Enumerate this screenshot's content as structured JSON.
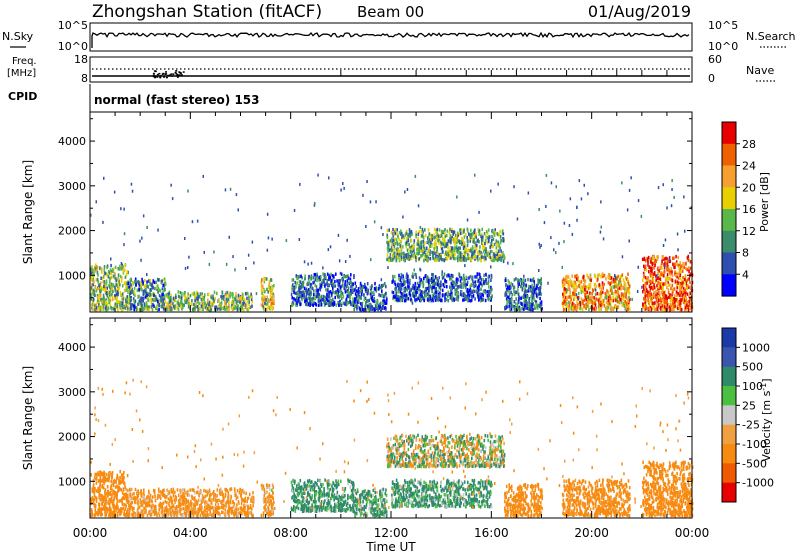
{
  "header": {
    "station": "Zhongshan Station (fitACF)",
    "beam": "Beam 00",
    "date": "01/Aug/2019"
  },
  "noise_panel": {
    "left_label": "N.Sky",
    "left_ticks": [
      "10^5",
      "10^0"
    ],
    "right_label": "N.Search",
    "right_ticks": [
      "10^5",
      "10^0"
    ]
  },
  "freq_panel": {
    "left_label_1": "Freq.",
    "left_label_2": "[MHz]",
    "left_ticks": [
      "18",
      "8"
    ],
    "right_label": "Nave",
    "right_ticks": [
      "60",
      "0"
    ]
  },
  "cpid": {
    "label": "CPID",
    "text": "normal (fast stereo) 153"
  },
  "x_axis": {
    "label": "Time UT",
    "ticks": [
      "00:00",
      "04:00",
      "08:00",
      "12:00",
      "16:00",
      "20:00",
      "00:00"
    ]
  },
  "colors": {
    "power": [
      "#0000ff",
      "#2f4fb0",
      "#3a8c6a",
      "#5ab84a",
      "#e8d000",
      "#f7a030",
      "#ef6000",
      "#e80000"
    ],
    "velocity": [
      "#e80000",
      "#ef5a00",
      "#f78a10",
      "#f0a040",
      "#c8c8c8",
      "#4cbf40",
      "#2f8a6a",
      "#3a55b0",
      "#1a3aa8"
    ]
  },
  "chart_data": [
    {
      "type": "heatmap",
      "ylabel": "Slant Range [km]",
      "xlabel": "",
      "y_ticks": [
        "1000",
        "2000",
        "3000",
        "4000"
      ],
      "y_tick_values": [
        1000,
        2000,
        3000,
        4000
      ],
      "ylim": [
        180,
        4650
      ],
      "xlim_hours": [
        0,
        24
      ],
      "colorbar": {
        "label": "Power [dB]",
        "ticks": [
          "4",
          "8",
          "12",
          "16",
          "20",
          "24",
          "28"
        ],
        "tick_values": [
          4,
          8,
          12,
          16,
          20,
          24,
          28
        ],
        "range": [
          0,
          32
        ]
      },
      "clusters": [
        {
          "t0": 0.0,
          "t1": 1.5,
          "r0": 200,
          "r1": 1200,
          "value": 14
        },
        {
          "t0": 1.5,
          "t1": 3.0,
          "r0": 200,
          "r1": 900,
          "value": 10
        },
        {
          "t0": 3.0,
          "t1": 6.5,
          "r0": 200,
          "r1": 600,
          "value": 14
        },
        {
          "t0": 6.8,
          "t1": 7.3,
          "r0": 200,
          "r1": 900,
          "value": 18
        },
        {
          "t0": 8.0,
          "t1": 10.5,
          "r0": 300,
          "r1": 1000,
          "value": 8
        },
        {
          "t0": 10.5,
          "t1": 11.8,
          "r0": 200,
          "r1": 800,
          "value": 6
        },
        {
          "t0": 11.8,
          "t1": 16.5,
          "r0": 1300,
          "r1": 2000,
          "value": 12
        },
        {
          "t0": 12.0,
          "t1": 16.0,
          "r0": 400,
          "r1": 1000,
          "value": 6
        },
        {
          "t0": 16.5,
          "t1": 18.0,
          "r0": 200,
          "r1": 900,
          "value": 8
        },
        {
          "t0": 18.8,
          "t1": 21.5,
          "r0": 200,
          "r1": 1000,
          "value": 22
        },
        {
          "t0": 22.0,
          "t1": 24.0,
          "r0": 200,
          "r1": 1400,
          "value": 26
        }
      ]
    },
    {
      "type": "heatmap",
      "ylabel": "Slant Range [km]",
      "xlabel": "Time UT",
      "y_ticks": [
        "1000",
        "2000",
        "3000",
        "4000"
      ],
      "y_tick_values": [
        1000,
        2000,
        3000,
        4000
      ],
      "ylim": [
        180,
        4650
      ],
      "xlim_hours": [
        0,
        24
      ],
      "colorbar": {
        "label": "Velocity [m s^-1]",
        "ticks": [
          "-1000",
          "-500",
          "-100",
          "-25",
          "25",
          "100",
          "500",
          "1000"
        ],
        "tick_values": [
          -1000,
          -500,
          -100,
          -25,
          25,
          100,
          500,
          1000
        ]
      },
      "clusters": [
        {
          "t0": 0.0,
          "t1": 1.5,
          "r0": 200,
          "r1": 1200,
          "value": -300
        },
        {
          "t0": 1.5,
          "t1": 6.5,
          "r0": 200,
          "r1": 800,
          "value": -200
        },
        {
          "t0": 6.8,
          "t1": 7.3,
          "r0": 200,
          "r1": 900,
          "value": -150
        },
        {
          "t0": 8.0,
          "t1": 10.5,
          "r0": 300,
          "r1": 1000,
          "value": 200
        },
        {
          "t0": 10.5,
          "t1": 11.8,
          "r0": 200,
          "r1": 800,
          "value": 150
        },
        {
          "t0": 11.8,
          "t1": 16.5,
          "r0": 1300,
          "r1": 2000,
          "value": 0
        },
        {
          "t0": 12.0,
          "t1": 16.0,
          "r0": 400,
          "r1": 1000,
          "value": 180
        },
        {
          "t0": 16.5,
          "t1": 18.0,
          "r0": 200,
          "r1": 900,
          "value": -300
        },
        {
          "t0": 18.8,
          "t1": 21.5,
          "r0": 200,
          "r1": 1000,
          "value": -250
        },
        {
          "t0": 22.0,
          "t1": 24.0,
          "r0": 200,
          "r1": 1400,
          "value": -300
        }
      ]
    }
  ]
}
